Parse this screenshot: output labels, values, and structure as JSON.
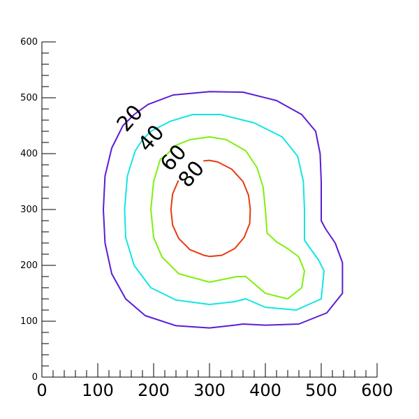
{
  "chart_data": {
    "type": "contour",
    "title": "",
    "xlabel": "",
    "ylabel": "",
    "xlim": [
      0,
      600
    ],
    "ylim": [
      0,
      600
    ],
    "major_ticks": [
      0,
      100,
      200,
      300,
      400,
      500,
      600
    ],
    "minor_tick_step": 20,
    "grid": false,
    "series": [
      {
        "level": 20,
        "label": "20",
        "color": "#5a1cd6",
        "points": [
          [
            145,
            450
          ],
          [
            125,
            410
          ],
          [
            113,
            360
          ],
          [
            110,
            300
          ],
          [
            113,
            240
          ],
          [
            125,
            185
          ],
          [
            150,
            140
          ],
          [
            185,
            110
          ],
          [
            240,
            92
          ],
          [
            300,
            88
          ],
          [
            345,
            93
          ],
          [
            360,
            95
          ],
          [
            400,
            93
          ],
          [
            460,
            95
          ],
          [
            510,
            115
          ],
          [
            538,
            150
          ],
          [
            538,
            205
          ],
          [
            525,
            240
          ],
          [
            508,
            265
          ],
          [
            500,
            280
          ],
          [
            500,
            300
          ],
          [
            500,
            350
          ],
          [
            498,
            400
          ],
          [
            490,
            440
          ],
          [
            465,
            470
          ],
          [
            420,
            495
          ],
          [
            360,
            510
          ],
          [
            300,
            511
          ],
          [
            235,
            505
          ],
          [
            190,
            488
          ],
          [
            165,
            470
          ],
          [
            145,
            450
          ]
        ]
      },
      {
        "level": 40,
        "label": "40",
        "color": "#13e5e5",
        "points": [
          [
            167,
            405
          ],
          [
            153,
            360
          ],
          [
            148,
            300
          ],
          [
            150,
            250
          ],
          [
            165,
            200
          ],
          [
            195,
            160
          ],
          [
            240,
            138
          ],
          [
            300,
            130
          ],
          [
            345,
            135
          ],
          [
            365,
            140
          ],
          [
            400,
            125
          ],
          [
            455,
            120
          ],
          [
            500,
            140
          ],
          [
            505,
            190
          ],
          [
            495,
            210
          ],
          [
            477,
            235
          ],
          [
            470,
            245
          ],
          [
            470,
            300
          ],
          [
            468,
            350
          ],
          [
            458,
            395
          ],
          [
            430,
            430
          ],
          [
            380,
            455
          ],
          [
            320,
            470
          ],
          [
            270,
            470
          ],
          [
            230,
            458
          ],
          [
            195,
            440
          ],
          [
            180,
            425
          ],
          [
            167,
            405
          ]
        ]
      },
      {
        "level": 60,
        "label": "60",
        "color": "#7ef00c",
        "points": [
          [
            212,
            390
          ],
          [
            200,
            350
          ],
          [
            195,
            300
          ],
          [
            200,
            250
          ],
          [
            215,
            215
          ],
          [
            245,
            185
          ],
          [
            300,
            170
          ],
          [
            350,
            180
          ],
          [
            365,
            180
          ],
          [
            400,
            150
          ],
          [
            440,
            140
          ],
          [
            465,
            160
          ],
          [
            470,
            190
          ],
          [
            460,
            215
          ],
          [
            440,
            230
          ],
          [
            420,
            242
          ],
          [
            403,
            258
          ],
          [
            400,
            300
          ],
          [
            396,
            340
          ],
          [
            385,
            375
          ],
          [
            365,
            405
          ],
          [
            330,
            425
          ],
          [
            300,
            430
          ],
          [
            265,
            425
          ],
          [
            240,
            415
          ],
          [
            225,
            400
          ],
          [
            212,
            390
          ]
        ]
      },
      {
        "level": 80,
        "label": "80",
        "color": "#e83a12",
        "points": [
          [
            244,
            351
          ],
          [
            234,
            328
          ],
          [
            231,
            300
          ],
          [
            234,
            272
          ],
          [
            245,
            248
          ],
          [
            265,
            228
          ],
          [
            290,
            218
          ],
          [
            300,
            216
          ],
          [
            322,
            218
          ],
          [
            345,
            230
          ],
          [
            362,
            250
          ],
          [
            372,
            275
          ],
          [
            373,
            300
          ],
          [
            370,
            325
          ],
          [
            360,
            350
          ],
          [
            340,
            372
          ],
          [
            315,
            385
          ],
          [
            300,
            388
          ],
          [
            290,
            387
          ]
        ]
      }
    ],
    "inline_labels": [
      {
        "text": "20",
        "x": 158,
        "y": 463,
        "rotation": -49
      },
      {
        "text": "40",
        "x": 196,
        "y": 427,
        "rotation": -49
      },
      {
        "text": "60",
        "x": 236,
        "y": 392,
        "rotation": -49
      },
      {
        "text": "80",
        "x": 268,
        "y": 363,
        "rotation": -49
      }
    ]
  }
}
